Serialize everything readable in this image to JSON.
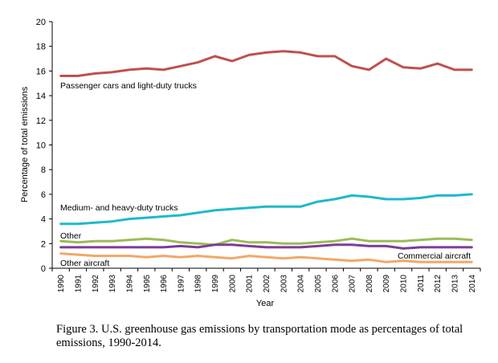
{
  "chart_data": {
    "type": "line",
    "xlabel": "Year",
    "ylabel": "Percentage of total emissions",
    "ylim": [
      0,
      20
    ],
    "yticks": [
      "0",
      "2",
      "4",
      "6",
      "8",
      "10",
      "12",
      "14",
      "16",
      "18",
      "20"
    ],
    "categories": [
      "1990",
      "1991",
      "1992",
      "1993",
      "1994",
      "1995",
      "1996",
      "1997",
      "1998",
      "1999",
      "2000",
      "2001",
      "2002",
      "2003",
      "2004",
      "2005",
      "2006",
      "2007",
      "2008",
      "2009",
      "2010",
      "2011",
      "2012",
      "2013",
      "2014"
    ],
    "grid": false,
    "series": [
      {
        "name": "Passenger cars and light-duty trucks",
        "color": "#c0504d",
        "values": [
          15.6,
          15.6,
          15.8,
          15.9,
          16.1,
          16.2,
          16.1,
          16.4,
          16.7,
          17.2,
          16.8,
          17.3,
          17.5,
          17.6,
          17.5,
          17.2,
          17.2,
          16.4,
          16.1,
          17.0,
          16.3,
          16.2,
          16.6,
          16.1,
          16.1
        ]
      },
      {
        "name": "Medium- and heavy-duty trucks",
        "color": "#1fb8cc",
        "values": [
          3.6,
          3.6,
          3.7,
          3.8,
          4.0,
          4.1,
          4.2,
          4.3,
          4.5,
          4.7,
          4.8,
          4.9,
          5.0,
          5.0,
          5.0,
          5.4,
          5.6,
          5.9,
          5.8,
          5.6,
          5.6,
          5.7,
          5.9,
          5.9,
          6.0
        ]
      },
      {
        "name": "Other",
        "color": "#9bbb59",
        "values": [
          2.2,
          2.1,
          2.2,
          2.2,
          2.3,
          2.4,
          2.3,
          2.1,
          2.0,
          1.9,
          2.3,
          2.1,
          2.1,
          2.0,
          2.0,
          2.1,
          2.2,
          2.4,
          2.2,
          2.2,
          2.2,
          2.3,
          2.4,
          2.4,
          2.3
        ]
      },
      {
        "name": "Commercial aircraft",
        "color": "#7d3c98",
        "values": [
          1.7,
          1.7,
          1.7,
          1.7,
          1.7,
          1.7,
          1.7,
          1.8,
          1.7,
          1.9,
          1.9,
          1.8,
          1.7,
          1.7,
          1.7,
          1.8,
          1.9,
          1.9,
          1.8,
          1.8,
          1.6,
          1.7,
          1.7,
          1.7,
          1.7
        ]
      },
      {
        "name": "Other aircraft",
        "color": "#f0a868",
        "values": [
          1.2,
          1.1,
          1.0,
          1.0,
          1.0,
          0.9,
          1.0,
          0.9,
          1.0,
          0.9,
          0.8,
          1.0,
          0.9,
          0.8,
          0.9,
          0.8,
          0.7,
          0.6,
          0.7,
          0.5,
          0.6,
          0.5,
          0.5,
          0.5,
          0.5
        ]
      }
    ],
    "caption": "Figure 3.  U.S. greenhouse gas emissions by transportation mode as percentages of total emissions, 1990-2014."
  }
}
